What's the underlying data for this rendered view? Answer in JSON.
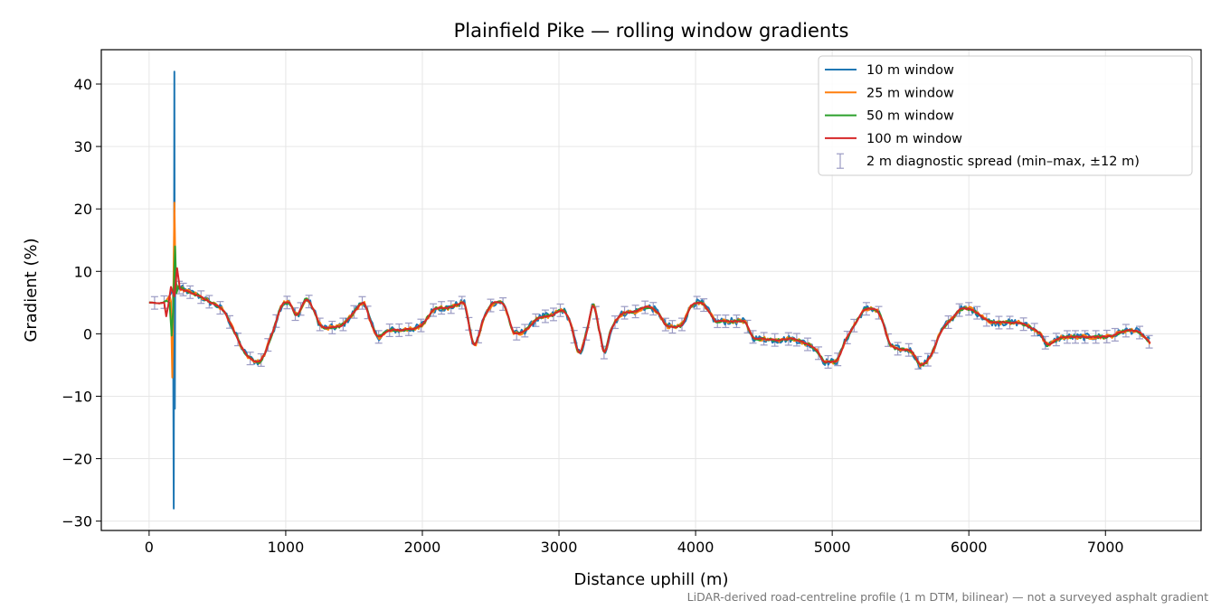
{
  "chart_data": {
    "type": "line",
    "title": "Plainfield Pike — rolling window gradients",
    "xlabel": "Distance uphill (m)",
    "ylabel": "Gradient (%)",
    "footnote": "LiDAR-derived road-centreline profile (1 m DTM, bilinear) — not a surveyed asphalt gradient",
    "xlim": [
      -350,
      7700
    ],
    "ylim": [
      -31.5,
      45.5
    ],
    "xticks": [
      0,
      1000,
      2000,
      3000,
      4000,
      5000,
      6000,
      7000
    ],
    "xtick_labels": [
      "0",
      "1000",
      "2000",
      "3000",
      "4000",
      "5000",
      "6000",
      "7000"
    ],
    "yticks": [
      -30,
      -20,
      -10,
      0,
      10,
      20,
      30,
      40
    ],
    "ytick_labels": [
      "−30",
      "−20",
      "−10",
      "0",
      "10",
      "20",
      "30",
      "40"
    ],
    "grid": true,
    "legend_position": "top-right",
    "base_profile": {
      "x": [
        0,
        120,
        200,
        260,
        350,
        450,
        550,
        620,
        700,
        800,
        900,
        970,
        1020,
        1080,
        1150,
        1200,
        1250,
        1330,
        1420,
        1500,
        1570,
        1620,
        1680,
        1750,
        1850,
        2000,
        2080,
        2200,
        2300,
        2380,
        2450,
        2530,
        2600,
        2680,
        2750,
        2850,
        2950,
        3020,
        3080,
        3150,
        3200,
        3250,
        3300,
        3330,
        3380,
        3450,
        3550,
        3650,
        3720,
        3800,
        3900,
        3970,
        4030,
        4100,
        4150,
        4250,
        4350,
        4420,
        4500,
        4600,
        4700,
        4800,
        4880,
        4950,
        5020,
        5100,
        5180,
        5250,
        5300,
        5350,
        5420,
        5500,
        5580,
        5650,
        5720,
        5800,
        5880,
        5950,
        6000,
        6050,
        6150,
        6250,
        6350,
        6450,
        6520,
        6580,
        6650,
        6750,
        6850,
        6950,
        7050,
        7150,
        7250,
        7330
      ],
      "y": [
        5,
        5.2,
        7.5,
        7.0,
        6.2,
        5.0,
        3.5,
        0.5,
        -3.0,
        -4.5,
        0,
        4.5,
        5.0,
        3.0,
        5.5,
        4.0,
        1.5,
        1.0,
        1.5,
        3.5,
        5.0,
        2.0,
        -0.5,
        0.5,
        0.6,
        1.5,
        3.8,
        4.2,
        5.0,
        -1.8,
        2.5,
        5.0,
        4.5,
        0,
        0.5,
        2.5,
        3.0,
        3.8,
        2.0,
        -3.0,
        0,
        4.5,
        0,
        -3.0,
        0.5,
        3.0,
        3.5,
        4.3,
        3.5,
        1.2,
        1.5,
        4.5,
        5.0,
        3.5,
        2.0,
        2.0,
        2.0,
        -0.5,
        -0.8,
        -1.0,
        -0.8,
        -1.5,
        -2.5,
        -4.5,
        -4.5,
        -1.0,
        2.0,
        4.0,
        4.0,
        3.0,
        -1.5,
        -2.5,
        -2.8,
        -5.0,
        -3.5,
        0.5,
        2.5,
        4.0,
        4.0,
        3.5,
        2.0,
        1.8,
        1.8,
        1.0,
        0,
        -1.8,
        -0.8,
        -0.5,
        -0.5,
        -0.5,
        -0.3,
        0.5,
        0.2,
        -1.5
      ]
    },
    "series": [
      {
        "name": "10 m window",
        "color": "#1f77b4",
        "noise": 0.55,
        "spike": {
          "x": [
            180,
            182,
            185,
            188,
            191,
            194,
            197
          ],
          "y": [
            -28,
            7,
            42,
            -12,
            10,
            7.5,
            8
          ]
        }
      },
      {
        "name": "25 m window",
        "color": "#ff7f0e",
        "noise": 0.35,
        "spike": {
          "x": [
            160,
            170,
            178,
            185,
            195,
            200,
            210
          ],
          "y": [
            5.2,
            -7,
            8,
            21,
            7.2,
            7.8,
            7.4
          ]
        }
      },
      {
        "name": "50 m window",
        "color": "#2ca02c",
        "noise": 0.22,
        "spike": {
          "x": [
            150,
            165,
            175,
            190,
            200,
            215,
            230
          ],
          "y": [
            5.0,
            -0.3,
            3.5,
            14,
            6.5,
            7.6,
            7.3
          ]
        }
      },
      {
        "name": "100 m window",
        "color": "#d62728",
        "noise": 0.1,
        "spike": {
          "x": [
            110,
            125,
            140,
            160,
            185,
            205,
            225,
            250
          ],
          "y": [
            5.0,
            2.8,
            4.5,
            7.5,
            6.0,
            10.5,
            7.2,
            7.0
          ]
        }
      }
    ],
    "errorbars": {
      "name": "2 m diagnostic spread (min–max, ±12 m)",
      "color": "#9b9bc4",
      "halfwidth": 1.0,
      "x": [
        40,
        110,
        220,
        250,
        300,
        380,
        440,
        520,
        590,
        650,
        740,
        820,
        870,
        930,
        1010,
        1070,
        1110,
        1170,
        1250,
        1340,
        1420,
        1500,
        1560,
        1600,
        1680,
        1760,
        1830,
        1900,
        1990,
        2080,
        2140,
        2210,
        2290,
        2340,
        2410,
        2500,
        2590,
        2690,
        2750,
        2830,
        2900,
        2960,
        3010,
        3110,
        3200,
        3270,
        3330,
        3410,
        3480,
        3560,
        3630,
        3690,
        3780,
        3830,
        3900,
        4010,
        4060,
        4160,
        4220,
        4300,
        4380,
        4420,
        4500,
        4580,
        4680,
        4740,
        4820,
        4900,
        4970,
        5040,
        5110,
        5160,
        5250,
        5340,
        5410,
        5480,
        5560,
        5630,
        5700,
        5750,
        5850,
        5930,
        6000,
        6060,
        6130,
        6220,
        6300,
        6400,
        6480,
        6560,
        6640,
        6720,
        6780,
        6850,
        6930,
        7010,
        7070,
        7150,
        7250,
        7320
      ]
    }
  }
}
